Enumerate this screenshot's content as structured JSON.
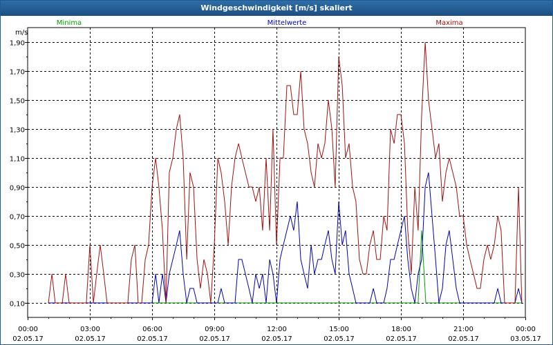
{
  "window": {
    "title": "Windgeschwindigkeit [m/s] skaliert"
  },
  "chart_data": {
    "type": "line",
    "title": "Windgeschwindigkeit [m/s] skaliert",
    "ylabel": "m/s",
    "xlabel": "",
    "ylim": [
      0,
      2.0
    ],
    "xlim_hours": [
      0,
      24
    ],
    "grid": true,
    "legend_placement": "top",
    "y_ticks": [
      "0,10",
      "0,30",
      "0,50",
      "0,70",
      "0,90",
      "1,10",
      "1,30",
      "1,50",
      "1,70",
      "1,90"
    ],
    "y_minor_ticks": [
      "0,20",
      "0,40",
      "0,60",
      "0,80",
      "1,00",
      "1,20",
      "1,40",
      "1,60",
      "1,80"
    ],
    "y_tick_values": [
      0.1,
      0.3,
      0.5,
      0.7,
      0.9,
      1.1,
      1.3,
      1.5,
      1.7,
      1.9
    ],
    "y_minor_values": [
      0.2,
      0.4,
      0.6,
      0.8,
      1.0,
      1.2,
      1.4,
      1.6,
      1.8
    ],
    "x_ticks": [
      {
        "h": 0,
        "time": "00:00",
        "date": "02.05.17"
      },
      {
        "h": 3,
        "time": "03:00",
        "date": "02.05.17"
      },
      {
        "h": 6,
        "time": "06:00",
        "date": "02.05.17"
      },
      {
        "h": 9,
        "time": "09:00",
        "date": "02.05.17"
      },
      {
        "h": 12,
        "time": "12:00",
        "date": "02.05.17"
      },
      {
        "h": 15,
        "time": "15:00",
        "date": "02.05.17"
      },
      {
        "h": 18,
        "time": "18:00",
        "date": "02.05.17"
      },
      {
        "h": 21,
        "time": "21:00",
        "date": "02.05.17"
      },
      {
        "h": 24,
        "time": "00:00",
        "date": "03.05.17"
      }
    ],
    "series": [
      {
        "name": "Minima",
        "color": "#00a000",
        "points": [
          [
            1,
            0.1
          ],
          [
            18.83,
            0.1
          ],
          [
            19.0,
            0.6
          ],
          [
            19.2,
            0.1
          ],
          [
            23.8,
            0.1
          ]
        ]
      },
      {
        "name": "Mittelwerte",
        "color": "#0000b0",
        "points": [
          [
            1,
            0.1
          ],
          [
            6.0,
            0.1
          ],
          [
            6.17,
            0.3
          ],
          [
            6.33,
            0.1
          ],
          [
            6.5,
            0.3
          ],
          [
            6.67,
            0.1
          ],
          [
            6.83,
            0.3
          ],
          [
            7.0,
            0.4
          ],
          [
            7.17,
            0.5
          ],
          [
            7.33,
            0.6
          ],
          [
            7.5,
            0.3
          ],
          [
            7.67,
            0.1
          ],
          [
            7.83,
            0.2
          ],
          [
            8.0,
            0.2
          ],
          [
            8.17,
            0.1
          ],
          [
            8.33,
            0.1
          ],
          [
            8.5,
            0.1
          ],
          [
            8.67,
            0.1
          ],
          [
            9.0,
            0.1
          ],
          [
            9.17,
            0.1
          ],
          [
            9.33,
            0.2
          ],
          [
            9.5,
            0.1
          ],
          [
            9.67,
            0.1
          ],
          [
            10.0,
            0.1
          ],
          [
            10.17,
            0.4
          ],
          [
            10.33,
            0.4
          ],
          [
            10.5,
            0.3
          ],
          [
            10.67,
            0.2
          ],
          [
            10.83,
            0.1
          ],
          [
            11.0,
            0.3
          ],
          [
            11.17,
            0.2
          ],
          [
            11.33,
            0.3
          ],
          [
            11.5,
            0.1
          ],
          [
            11.67,
            0.4
          ],
          [
            11.83,
            0.3
          ],
          [
            12.0,
            0.1
          ],
          [
            12.17,
            0.4
          ],
          [
            12.33,
            0.5
          ],
          [
            12.5,
            0.6
          ],
          [
            12.67,
            0.7
          ],
          [
            12.83,
            0.6
          ],
          [
            13.0,
            0.8
          ],
          [
            13.17,
            0.4
          ],
          [
            13.33,
            0.3
          ],
          [
            13.5,
            0.2
          ],
          [
            13.67,
            0.5
          ],
          [
            13.83,
            0.3
          ],
          [
            14.0,
            0.4
          ],
          [
            14.17,
            0.4
          ],
          [
            14.33,
            0.5
          ],
          [
            14.5,
            0.6
          ],
          [
            14.67,
            0.4
          ],
          [
            14.83,
            0.3
          ],
          [
            15.0,
            0.8
          ],
          [
            15.17,
            0.5
          ],
          [
            15.33,
            0.6
          ],
          [
            15.5,
            0.3
          ],
          [
            15.67,
            0.2
          ],
          [
            15.83,
            0.1
          ],
          [
            16.0,
            0.1
          ],
          [
            16.17,
            0.1
          ],
          [
            16.5,
            0.1
          ],
          [
            16.67,
            0.2
          ],
          [
            16.83,
            0.1
          ],
          [
            17.0,
            0.1
          ],
          [
            17.17,
            0.1
          ],
          [
            17.33,
            0.2
          ],
          [
            17.5,
            0.4
          ],
          [
            17.67,
            0.4
          ],
          [
            17.83,
            0.5
          ],
          [
            18.0,
            0.6
          ],
          [
            18.17,
            0.7
          ],
          [
            18.33,
            0.4
          ],
          [
            18.5,
            0.2
          ],
          [
            18.67,
            0.1
          ],
          [
            18.83,
            0.3
          ],
          [
            19.0,
            0.4
          ],
          [
            19.17,
            0.9
          ],
          [
            19.33,
            1.0
          ],
          [
            19.5,
            0.7
          ],
          [
            19.67,
            0.4
          ],
          [
            19.83,
            0.1
          ],
          [
            20.0,
            0.2
          ],
          [
            20.17,
            0.5
          ],
          [
            20.33,
            0.6
          ],
          [
            20.5,
            0.4
          ],
          [
            20.67,
            0.2
          ],
          [
            20.83,
            0.1
          ],
          [
            21.0,
            0.1
          ],
          [
            21.17,
            0.1
          ],
          [
            21.33,
            0.1
          ],
          [
            22.0,
            0.1
          ],
          [
            22.33,
            0.1
          ],
          [
            22.5,
            0.1
          ],
          [
            22.67,
            0.2
          ],
          [
            22.83,
            0.1
          ],
          [
            23.0,
            0.1
          ],
          [
            23.17,
            0.1
          ],
          [
            23.5,
            0.1
          ],
          [
            23.67,
            0.2
          ],
          [
            23.83,
            0.1
          ]
        ]
      },
      {
        "name": "Maxima",
        "color": "#a01010",
        "points": [
          [
            1,
            0.1
          ],
          [
            1.17,
            0.3
          ],
          [
            1.33,
            0.1
          ],
          [
            1.67,
            0.1
          ],
          [
            1.83,
            0.3
          ],
          [
            2.0,
            0.1
          ],
          [
            2.5,
            0.1
          ],
          [
            2.83,
            0.1
          ],
          [
            3.0,
            0.5
          ],
          [
            3.17,
            0.1
          ],
          [
            3.33,
            0.3
          ],
          [
            3.5,
            0.5
          ],
          [
            3.67,
            0.3
          ],
          [
            3.83,
            0.1
          ],
          [
            4.5,
            0.1
          ],
          [
            4.83,
            0.1
          ],
          [
            5.0,
            0.4
          ],
          [
            5.17,
            0.5
          ],
          [
            5.33,
            0.1
          ],
          [
            5.5,
            0.1
          ],
          [
            5.67,
            0.4
          ],
          [
            5.83,
            0.5
          ],
          [
            6.0,
            0.9
          ],
          [
            6.17,
            1.1
          ],
          [
            6.33,
            0.9
          ],
          [
            6.5,
            0.6
          ],
          [
            6.67,
            0.1
          ],
          [
            6.83,
            1.0
          ],
          [
            7.0,
            1.1
          ],
          [
            7.17,
            1.3
          ],
          [
            7.33,
            1.4
          ],
          [
            7.5,
            1.1
          ],
          [
            7.67,
            0.4
          ],
          [
            7.83,
            1.0
          ],
          [
            8.0,
            0.9
          ],
          [
            8.17,
            0.4
          ],
          [
            8.33,
            0.2
          ],
          [
            8.5,
            0.4
          ],
          [
            8.67,
            0.3
          ],
          [
            8.83,
            0.1
          ],
          [
            9.0,
            0.5
          ],
          [
            9.17,
            1.1
          ],
          [
            9.33,
            1.0
          ],
          [
            9.5,
            0.8
          ],
          [
            9.67,
            0.5
          ],
          [
            9.83,
            0.9
          ],
          [
            10.0,
            1.1
          ],
          [
            10.17,
            1.2
          ],
          [
            10.33,
            1.1
          ],
          [
            10.5,
            1.0
          ],
          [
            10.67,
            0.9
          ],
          [
            10.83,
            0.9
          ],
          [
            11.0,
            0.8
          ],
          [
            11.17,
            0.9
          ],
          [
            11.33,
            0.6
          ],
          [
            11.5,
            1.1
          ],
          [
            11.67,
            0.6
          ],
          [
            11.83,
            1.3
          ],
          [
            12.0,
            0.5
          ],
          [
            12.17,
            1.1
          ],
          [
            12.33,
            1.1
          ],
          [
            12.5,
            1.6
          ],
          [
            12.67,
            1.6
          ],
          [
            12.83,
            1.4
          ],
          [
            13.0,
            1.4
          ],
          [
            13.17,
            1.7
          ],
          [
            13.33,
            1.3
          ],
          [
            13.5,
            1.2
          ],
          [
            13.67,
            1.0
          ],
          [
            13.83,
            0.9
          ],
          [
            14.0,
            1.2
          ],
          [
            14.17,
            1.1
          ],
          [
            14.33,
            1.2
          ],
          [
            14.5,
            1.5
          ],
          [
            14.67,
            1.3
          ],
          [
            14.83,
            0.9
          ],
          [
            15.0,
            1.8
          ],
          [
            15.17,
            1.6
          ],
          [
            15.33,
            1.1
          ],
          [
            15.5,
            1.2
          ],
          [
            15.67,
            0.9
          ],
          [
            15.83,
            0.8
          ],
          [
            16.0,
            0.4
          ],
          [
            16.17,
            0.3
          ],
          [
            16.33,
            0.3
          ],
          [
            16.5,
            0.5
          ],
          [
            16.67,
            0.6
          ],
          [
            16.83,
            0.4
          ],
          [
            17.0,
            0.4
          ],
          [
            17.17,
            0.7
          ],
          [
            17.33,
            0.6
          ],
          [
            17.5,
            1.3
          ],
          [
            17.67,
            1.2
          ],
          [
            17.83,
            1.4
          ],
          [
            18.0,
            1.4
          ],
          [
            18.17,
            1.2
          ],
          [
            18.33,
            0.6
          ],
          [
            18.5,
            0.3
          ],
          [
            18.67,
            0.9
          ],
          [
            18.83,
            0.6
          ],
          [
            19.0,
            1.4
          ],
          [
            19.17,
            1.9
          ],
          [
            19.33,
            1.5
          ],
          [
            19.5,
            1.3
          ],
          [
            19.67,
            1.1
          ],
          [
            19.83,
            1.2
          ],
          [
            20.0,
            0.8
          ],
          [
            20.17,
            1.0
          ],
          [
            20.33,
            1.1
          ],
          [
            20.5,
            1.0
          ],
          [
            20.67,
            0.9
          ],
          [
            20.83,
            0.7
          ],
          [
            21.0,
            0.7
          ],
          [
            21.17,
            0.5
          ],
          [
            21.33,
            0.4
          ],
          [
            21.5,
            0.3
          ],
          [
            21.67,
            0.2
          ],
          [
            21.83,
            0.2
          ],
          [
            22.0,
            0.4
          ],
          [
            22.17,
            0.5
          ],
          [
            22.33,
            0.4
          ],
          [
            22.5,
            0.5
          ],
          [
            22.67,
            0.7
          ],
          [
            22.83,
            0.6
          ],
          [
            23.0,
            0.1
          ],
          [
            23.33,
            0.1
          ],
          [
            23.5,
            0.1
          ],
          [
            23.67,
            0.9
          ],
          [
            23.83,
            0.1
          ]
        ]
      }
    ]
  }
}
